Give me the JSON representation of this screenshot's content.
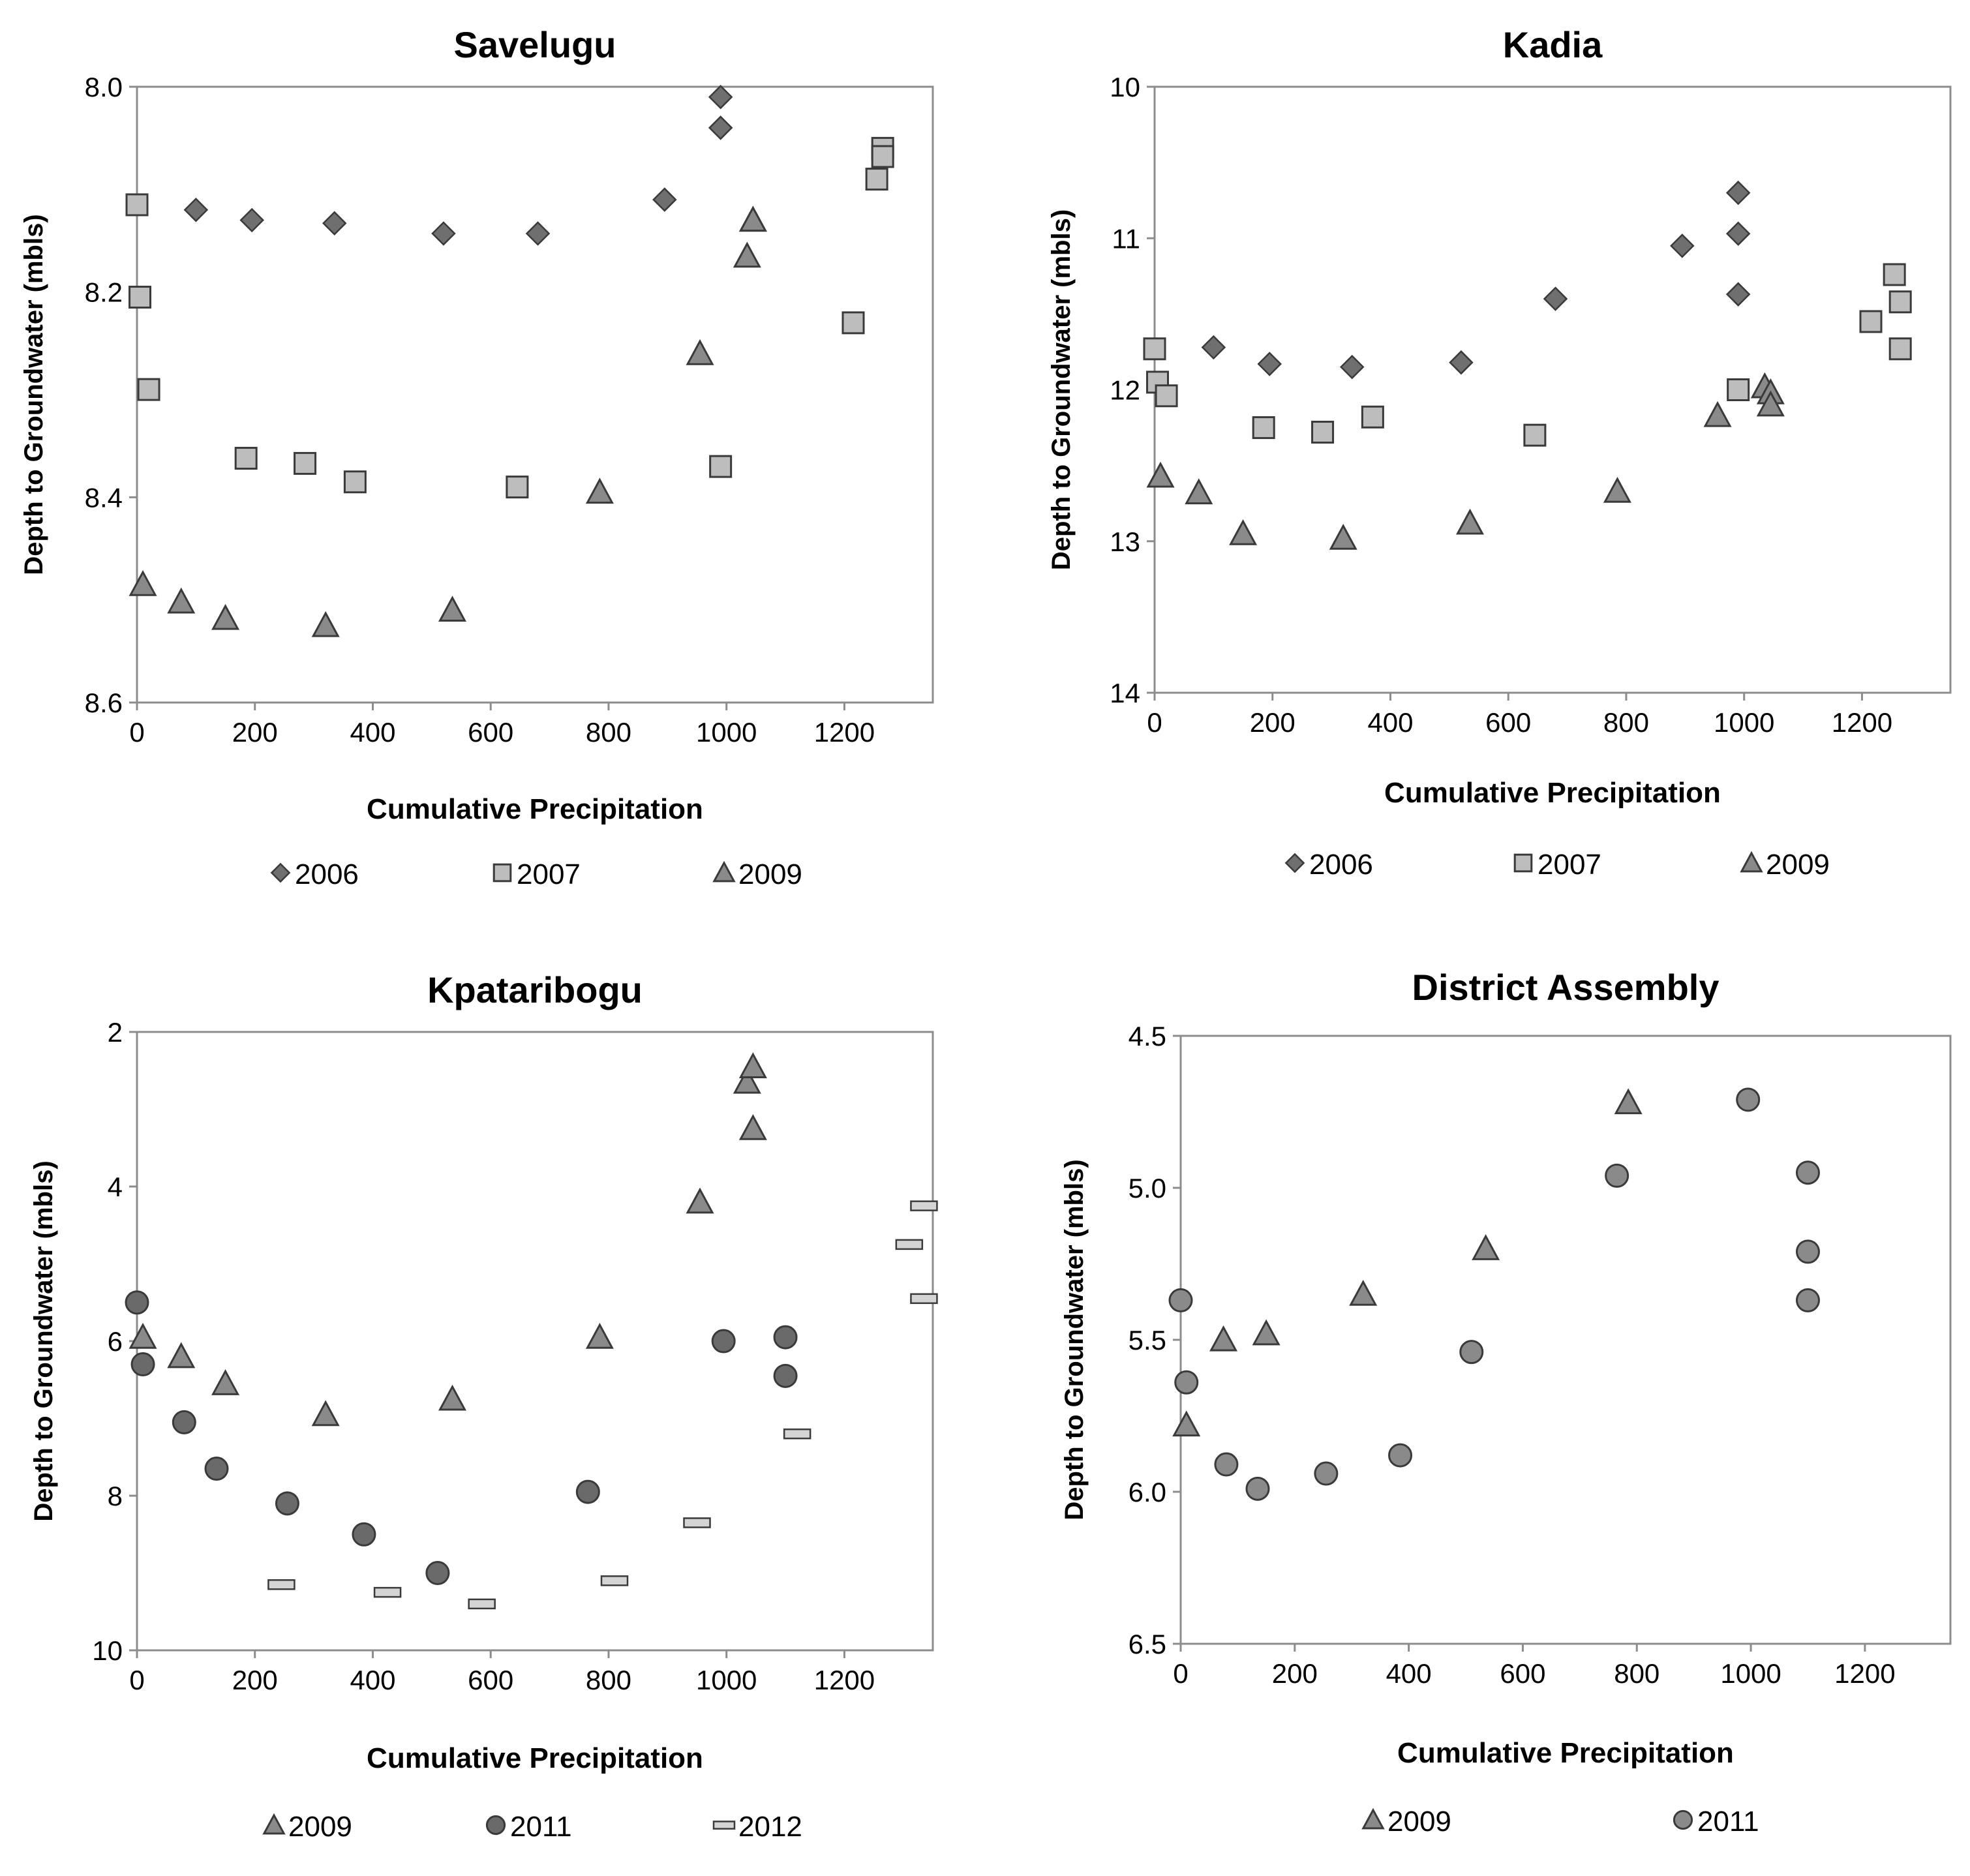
{
  "chart_data": [
    {
      "type": "scatter",
      "title": "Savelugu",
      "xlabel": "Cumulative Precipitation",
      "ylabel": "Depth to Groundwater (mbls)",
      "xlim": [
        0,
        1350
      ],
      "ylim": [
        8.0,
        8.6
      ],
      "y_inverted": true,
      "xticks": [
        "0",
        "200",
        "400",
        "600",
        "800",
        "1000",
        "1200"
      ],
      "xtick_values": [
        0,
        200,
        400,
        600,
        800,
        1000,
        1200
      ],
      "yticks": [
        "8.0",
        "8.2",
        "8.4",
        "8.6"
      ],
      "ytick_values": [
        8.0,
        8.2,
        8.4,
        8.6
      ],
      "legend_position": "bottom",
      "series": [
        {
          "name": "2006",
          "marker": "diamond",
          "color": "#6f6f6f",
          "x": [
            100,
            195,
            335,
            520,
            680,
            895,
            990,
            990
          ],
          "y": [
            8.12,
            8.13,
            8.133,
            8.143,
            8.143,
            8.11,
            8.01,
            8.04
          ]
        },
        {
          "name": "2007",
          "marker": "square",
          "color": "#bdbdbd",
          "x": [
            0,
            5,
            20,
            185,
            285,
            370,
            645,
            990,
            1215,
            1255,
            1265,
            1265
          ],
          "y": [
            8.115,
            8.205,
            8.295,
            8.362,
            8.367,
            8.385,
            8.39,
            8.37,
            8.23,
            8.09,
            8.06,
            8.068
          ]
        },
        {
          "name": "2009",
          "marker": "triangle",
          "color": "#8a8a8a",
          "x": [
            10,
            75,
            150,
            320,
            535,
            785,
            955,
            1035,
            1045,
            1045
          ],
          "y": [
            8.485,
            8.502,
            8.518,
            8.525,
            8.51,
            8.395,
            8.26,
            8.165,
            8.13,
            8.13
          ]
        }
      ]
    },
    {
      "type": "scatter",
      "title": "Kadia",
      "xlabel": "Cumulative  Precipitation",
      "ylabel": "Depth to Groundwater (mbls)",
      "xlim": [
        0,
        1350
      ],
      "ylim": [
        10,
        14
      ],
      "y_inverted": true,
      "xticks": [
        "0",
        "200",
        "400",
        "600",
        "800",
        "1000",
        "1200"
      ],
      "xtick_values": [
        0,
        200,
        400,
        600,
        800,
        1000,
        1200
      ],
      "yticks": [
        "10",
        "11",
        "12",
        "13",
        "14"
      ],
      "ytick_values": [
        10,
        11,
        12,
        13,
        14
      ],
      "legend_position": "bottom",
      "series": [
        {
          "name": "2006",
          "marker": "diamond",
          "color": "#6f6f6f",
          "x": [
            100,
            195,
            335,
            520,
            680,
            895,
            990,
            990,
            990
          ],
          "y": [
            11.72,
            11.83,
            11.85,
            11.82,
            11.4,
            11.05,
            10.7,
            10.97,
            11.37
          ]
        },
        {
          "name": "2007",
          "marker": "square",
          "color": "#bdbdbd",
          "x": [
            0,
            5,
            20,
            185,
            285,
            370,
            645,
            990,
            1215,
            1255,
            1265,
            1265
          ],
          "y": [
            11.73,
            11.95,
            12.04,
            12.25,
            12.28,
            12.18,
            12.3,
            12.0,
            11.55,
            11.24,
            11.42,
            11.73
          ]
        },
        {
          "name": "2009",
          "marker": "triangle",
          "color": "#8a8a8a",
          "x": [
            10,
            75,
            150,
            320,
            535,
            785,
            955,
            1035,
            1045,
            1045
          ],
          "y": [
            12.57,
            12.68,
            12.95,
            12.98,
            12.88,
            12.67,
            12.17,
            11.98,
            12.02,
            12.1
          ]
        }
      ]
    },
    {
      "type": "scatter",
      "title": "Kpataribogu",
      "xlabel": "Cumulative Precipitation",
      "ylabel": "Depth to Groundwater (mbls)",
      "xlim": [
        0,
        1350
      ],
      "ylim": [
        2,
        10
      ],
      "y_inverted": true,
      "xticks": [
        "0",
        "200",
        "400",
        "600",
        "800",
        "1000",
        "1200"
      ],
      "xtick_values": [
        0,
        200,
        400,
        600,
        800,
        1000,
        1200
      ],
      "yticks": [
        "2",
        "4",
        "6",
        "8",
        "10"
      ],
      "ytick_values": [
        2,
        4,
        6,
        8,
        10
      ],
      "legend_position": "bottom",
      "series": [
        {
          "name": "2009",
          "marker": "triangle",
          "color": "#8a8a8a",
          "x": [
            10,
            75,
            150,
            320,
            535,
            785,
            955,
            1035,
            1045,
            1045
          ],
          "y": [
            5.95,
            6.2,
            6.55,
            6.95,
            6.75,
            5.95,
            4.2,
            2.65,
            3.25,
            2.45
          ]
        },
        {
          "name": "2011",
          "marker": "circle",
          "color": "#6a6a6a",
          "x": [
            0,
            10,
            80,
            135,
            255,
            385,
            510,
            765,
            995,
            1100,
            1100
          ],
          "y": [
            5.5,
            6.3,
            7.05,
            7.65,
            8.1,
            8.5,
            9.0,
            7.95,
            6.0,
            5.95,
            6.45
          ]
        },
        {
          "name": "2012",
          "marker": "dash",
          "color": "#d4d4d4",
          "x": [
            245,
            425,
            585,
            810,
            950,
            1120,
            1310,
            1335,
            1335
          ],
          "y": [
            9.15,
            9.25,
            9.4,
            9.1,
            8.35,
            7.2,
            4.75,
            4.25,
            5.45
          ]
        }
      ]
    },
    {
      "type": "scatter",
      "title": "District Assembly",
      "xlabel": "Cumulative Precipitation",
      "ylabel": "Depth to Groundwater (mbls)",
      "xlim": [
        0,
        1350
      ],
      "ylim": [
        4.5,
        6.5
      ],
      "y_inverted": true,
      "xticks": [
        "0",
        "200",
        "400",
        "600",
        "800",
        "1000",
        "1200"
      ],
      "xtick_values": [
        0,
        200,
        400,
        600,
        800,
        1000,
        1200
      ],
      "yticks": [
        "4.5",
        "5.0",
        "5.5",
        "6.0",
        "6.5"
      ],
      "ytick_values": [
        4.5,
        5.0,
        5.5,
        6.0,
        6.5
      ],
      "legend_position": "bottom",
      "series": [
        {
          "name": "2009",
          "marker": "triangle",
          "color": "#8a8a8a",
          "x": [
            10,
            75,
            150,
            320,
            535,
            785
          ],
          "y": [
            5.78,
            5.5,
            5.48,
            5.35,
            5.2,
            4.72
          ]
        },
        {
          "name": "2011",
          "marker": "circle",
          "color": "#8a8a8a",
          "x": [
            0,
            10,
            80,
            135,
            255,
            385,
            510,
            765,
            995,
            1100,
            1100,
            1100
          ],
          "y": [
            5.37,
            5.64,
            5.91,
            5.99,
            5.94,
            5.88,
            5.54,
            4.96,
            4.71,
            4.95,
            5.21,
            5.37
          ]
        }
      ]
    }
  ]
}
